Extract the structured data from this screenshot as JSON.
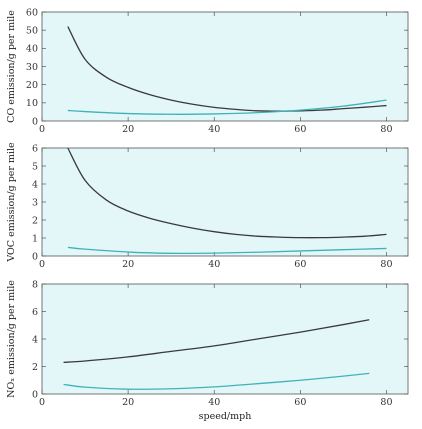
{
  "colors": {
    "background": "#e3f6f8",
    "frame": "#555555",
    "series_dark": "#3a3a3a",
    "series_teal": "#3fb3b8"
  },
  "chart_data": [
    {
      "type": "line",
      "xlabel": "",
      "ylabel": "CO emission/g per mile",
      "xlim": [
        0,
        85
      ],
      "ylim": [
        0,
        60
      ],
      "xticks": [
        0,
        20,
        40,
        60,
        80
      ],
      "yticks": [
        0,
        10,
        20,
        30,
        40,
        50,
        60
      ],
      "series": [
        {
          "color": "#3a3a3a",
          "x": [
            6,
            10,
            15,
            20,
            25,
            30,
            35,
            40,
            45,
            50,
            55,
            60,
            65,
            70,
            75,
            80
          ],
          "y": [
            52,
            34,
            24,
            18.5,
            14.5,
            11.5,
            9.2,
            7.5,
            6.4,
            5.6,
            5.4,
            5.6,
            6,
            6.8,
            7.6,
            8.5
          ]
        },
        {
          "color": "#3fb3b8",
          "x": [
            6,
            10,
            20,
            30,
            40,
            50,
            60,
            70,
            80
          ],
          "y": [
            5.8,
            5.2,
            4.1,
            3.7,
            3.9,
            4.6,
            6,
            8.2,
            11.5
          ]
        }
      ]
    },
    {
      "type": "line",
      "xlabel": "",
      "ylabel": "VOC emission/g per mile",
      "xlim": [
        0,
        85
      ],
      "ylim": [
        0,
        6
      ],
      "xticks": [
        0,
        20,
        40,
        60,
        80
      ],
      "yticks": [
        0,
        1,
        2,
        3,
        4,
        5,
        6
      ],
      "series": [
        {
          "color": "#3a3a3a",
          "x": [
            6,
            10,
            15,
            20,
            25,
            30,
            35,
            40,
            45,
            50,
            55,
            60,
            65,
            70,
            75,
            80
          ],
          "y": [
            6,
            4.2,
            3.1,
            2.5,
            2.1,
            1.8,
            1.55,
            1.35,
            1.2,
            1.1,
            1.05,
            1.02,
            1.02,
            1.05,
            1.1,
            1.2
          ]
        },
        {
          "color": "#3fb3b8",
          "x": [
            6,
            10,
            20,
            30,
            40,
            50,
            60,
            70,
            80
          ],
          "y": [
            0.48,
            0.38,
            0.22,
            0.15,
            0.16,
            0.21,
            0.28,
            0.35,
            0.42
          ]
        }
      ]
    },
    {
      "type": "line",
      "xlabel": "speed/mph",
      "ylabel": "NOₓ emission/g per mile",
      "xlim": [
        0,
        85
      ],
      "ylim": [
        0,
        8
      ],
      "xticks": [
        0,
        20,
        40,
        60,
        80
      ],
      "yticks": [
        0,
        2,
        4,
        6,
        8
      ],
      "series": [
        {
          "color": "#3a3a3a",
          "x": [
            5,
            10,
            20,
            30,
            40,
            50,
            60,
            70,
            76
          ],
          "y": [
            2.3,
            2.4,
            2.7,
            3.1,
            3.5,
            4,
            4.5,
            5.05,
            5.4
          ]
        },
        {
          "color": "#3fb3b8",
          "x": [
            5,
            10,
            20,
            30,
            40,
            50,
            60,
            70,
            76
          ],
          "y": [
            0.7,
            0.5,
            0.35,
            0.38,
            0.52,
            0.75,
            1,
            1.3,
            1.5
          ]
        }
      ]
    }
  ]
}
